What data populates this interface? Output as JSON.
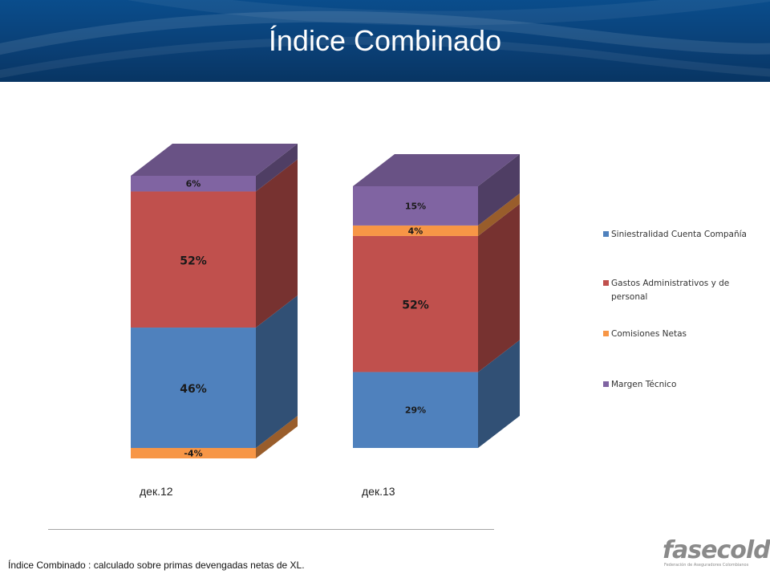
{
  "header": {
    "title": "Índice Combinado"
  },
  "footnote": "Índice Combinado : calculado sobre primas devengadas netas de XL.",
  "logo": {
    "word": "fasecolda",
    "subtitle": "Federación de Aseguradores Colombianos"
  },
  "colors": {
    "siniestralidad": "#4f81bd",
    "gastos": "#c0504d",
    "comisiones": "#f79646",
    "margen": "#8064a2"
  },
  "chart_data": {
    "type": "bar",
    "stacked": true,
    "style": "3d",
    "categories": [
      "дек.12",
      "дек.13"
    ],
    "series": [
      {
        "name": "Siniestralidad Cuenta Compañía",
        "values": [
          46,
          29
        ],
        "labels": [
          "46%",
          "29%"
        ]
      },
      {
        "name": "Gastos Administrativos y de personal",
        "values": [
          52,
          52
        ],
        "labels": [
          "52%",
          "52%"
        ]
      },
      {
        "name": "Comisiones Netas",
        "values": [
          -4,
          4
        ],
        "labels": [
          "-4%",
          "4%"
        ]
      },
      {
        "name": "Margen Técnico",
        "values": [
          6,
          15
        ],
        "labels": [
          "6%",
          "15%"
        ]
      }
    ],
    "legend_position": "right",
    "grid": false
  }
}
